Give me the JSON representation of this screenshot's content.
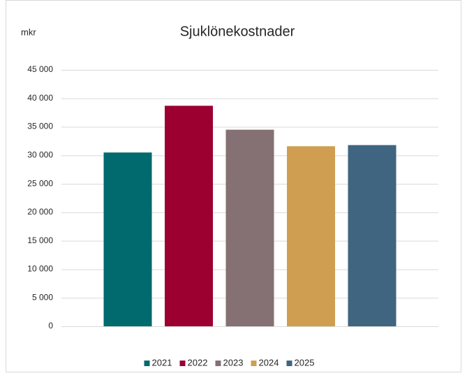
{
  "chart_data": {
    "type": "bar",
    "title": "Sjuklönekostnader",
    "y_label": "mkr",
    "categories": [
      null
    ],
    "series": [
      {
        "name": "2021",
        "color": "#006a6e",
        "values": [
          30500
        ]
      },
      {
        "name": "2022",
        "color": "#9b0030",
        "values": [
          38700
        ]
      },
      {
        "name": "2023",
        "color": "#857073",
        "values": [
          34500
        ]
      },
      {
        "name": "2024",
        "color": "#d09e50",
        "values": [
          31600
        ]
      },
      {
        "name": "2025",
        "color": "#3f6580",
        "values": [
          31800
        ]
      }
    ],
    "ylim": [
      0,
      45000
    ],
    "yticks": [
      0,
      {
        "value": 5000,
        "label": "5 000"
      },
      {
        "value": 10000,
        "label": "10 000"
      },
      {
        "value": 15000,
        "label": "15 000"
      },
      {
        "value": 20000,
        "label": "20 000"
      },
      {
        "value": 25000,
        "label": "25 000"
      },
      {
        "value": 30000,
        "label": "30 000"
      },
      {
        "value": 35000,
        "label": "35 000"
      },
      {
        "value": 40000,
        "label": "40 000"
      },
      {
        "value": 45000,
        "label": "45 000"
      }
    ],
    "grid": true,
    "legend": "bottom"
  }
}
